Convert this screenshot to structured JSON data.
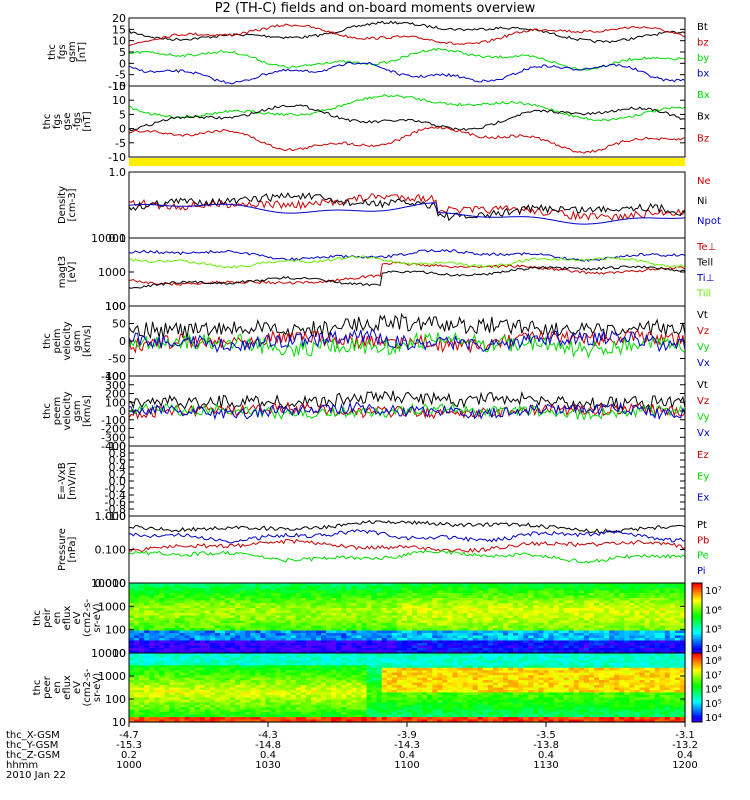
{
  "title": "P2 (TH-C) fields and on-board moments overview",
  "colors": {
    "black": "#000000",
    "red": "#cc0000",
    "green": "#00dd00",
    "blue": "#0000cc",
    "yellow": "#ffee00",
    "lightgreen": "#66ee00"
  },
  "chart_data": [
    {
      "type": "line",
      "id": "fgs_gsm",
      "ylabel": [
        "thc",
        "fgs",
        "gsm",
        "[nT]"
      ],
      "yticks": [
        "20",
        "15",
        "10",
        "5",
        "0",
        "-5",
        "-10"
      ],
      "legend": [
        {
          "name": "Bt",
          "color": "black"
        },
        {
          "name": "bz",
          "color": "red"
        },
        {
          "name": "by",
          "color": "green"
        },
        {
          "name": "bx",
          "color": "blue"
        }
      ]
    },
    {
      "type": "line",
      "id": "fgs_gse",
      "ylabel": [
        "thc",
        "fgs",
        "gse",
        "-fgs",
        "[nT]"
      ],
      "yticks": [
        "15",
        "10",
        "5",
        "0",
        "-5",
        "-10"
      ],
      "legend": [
        {
          "name": "Bx",
          "color": "green"
        },
        {
          "name": "Bx",
          "color": "black"
        },
        {
          "name": "Bz",
          "color": "red"
        }
      ]
    },
    {
      "type": "line",
      "id": "density",
      "ylabel": [
        "Density",
        "[cm-3]"
      ],
      "scale": "log",
      "yticks": [
        "1.0",
        "0.1"
      ],
      "legend": [
        {
          "name": "Ne",
          "color": "red"
        },
        {
          "name": "Ni",
          "color": "black"
        },
        {
          "name": "Npot",
          "color": "blue"
        }
      ]
    },
    {
      "type": "line",
      "id": "temperature",
      "ylabel": [
        "magt3",
        "[eV]"
      ],
      "scale": "log",
      "yticks": [
        "10000",
        "1000",
        "100"
      ],
      "legend": [
        {
          "name": "Te⊥",
          "color": "red"
        },
        {
          "name": "Tell",
          "color": "black"
        },
        {
          "name": "Ti⊥",
          "color": "blue"
        },
        {
          "name": "Till",
          "color": "lightgreen"
        }
      ]
    },
    {
      "type": "line",
      "id": "ve",
      "ylabel": [
        "thc",
        "peim",
        "velocity",
        "gsm",
        "[km/s]"
      ],
      "yticks": [
        "100",
        "50",
        "0",
        "-50",
        "-100"
      ],
      "legend": [
        {
          "name": "Vt",
          "color": "black"
        },
        {
          "name": "Vz",
          "color": "red"
        },
        {
          "name": "Vy",
          "color": "green"
        },
        {
          "name": "Vx",
          "color": "blue"
        }
      ]
    },
    {
      "type": "line",
      "id": "vi",
      "ylabel": [
        "thc",
        "peem",
        "velocity",
        "gsm",
        "[km/s]"
      ],
      "yticks": [
        "400",
        "300",
        "200",
        "100",
        "0",
        "-100",
        "-200",
        "-300",
        "-400"
      ],
      "legend": [
        {
          "name": "Vt",
          "color": "black"
        },
        {
          "name": "Vz",
          "color": "red"
        },
        {
          "name": "Vy",
          "color": "green"
        },
        {
          "name": "Vx",
          "color": "blue"
        }
      ]
    },
    {
      "type": "line",
      "id": "efield",
      "ylabel": [
        "E=-VxB",
        "[mV/m]"
      ],
      "yticks": [
        "1.0",
        "0.8",
        "0.6",
        "0.4",
        "0.2",
        "0.0",
        "-0.2",
        "-0.4",
        "-0.6",
        "-0.8",
        "-1.0"
      ],
      "legend": [
        {
          "name": "Ez",
          "color": "red"
        },
        {
          "name": "Ey",
          "color": "green"
        },
        {
          "name": "Ex",
          "color": "blue"
        }
      ]
    },
    {
      "type": "line",
      "id": "pressure",
      "ylabel": [
        "Pressure",
        "[nPa]"
      ],
      "scale": "log",
      "yticks": [
        "1.000",
        "0.100",
        "0.010"
      ],
      "legend": [
        {
          "name": "Pt",
          "color": "black"
        },
        {
          "name": "Pb",
          "color": "red"
        },
        {
          "name": "Pe",
          "color": "green"
        },
        {
          "name": "Pi",
          "color": "blue"
        }
      ]
    },
    {
      "type": "heatmap",
      "id": "ion_spec",
      "ylabel": [
        "thc",
        "peir",
        "en",
        "eflux",
        "eV",
        "(cm2-s-",
        "sr-eV)"
      ],
      "scale": "log",
      "yticks": [
        "10000",
        "1000",
        "100",
        "10"
      ],
      "colorbar": {
        "ticks": [
          "10⁷",
          "10⁶",
          "10⁵",
          "10⁴"
        ]
      }
    },
    {
      "type": "heatmap",
      "id": "elec_spec",
      "ylabel": [
        "thc",
        "peer",
        "en",
        "eflux",
        "eV",
        "(cm2-s-",
        "sr-eV)"
      ],
      "scale": "log",
      "yticks": [
        "10000",
        "1000",
        "100",
        "10"
      ],
      "colorbar": {
        "ticks": [
          "10⁸",
          "10⁷",
          "10⁶",
          "10⁵",
          "10⁴"
        ]
      }
    }
  ],
  "xaxis": {
    "rows": [
      {
        "label": "thc_X-GSM",
        "values": [
          "-4.7",
          "-4.3",
          "-3.9",
          "-3.5",
          "-3.1"
        ]
      },
      {
        "label": "thc_Y-GSM",
        "values": [
          "-15.3",
          "-14.8",
          "-14.3",
          "-13.8",
          "-13.2"
        ]
      },
      {
        "label": "thc_Z-GSM",
        "values": [
          "0.2",
          "0.4",
          "0.4",
          "0.4",
          "0.4"
        ]
      },
      {
        "label": "hhmm",
        "values": [
          "1000",
          "1030",
          "1100",
          "1130",
          "1200"
        ]
      }
    ],
    "date": "2010 Jan 22"
  }
}
